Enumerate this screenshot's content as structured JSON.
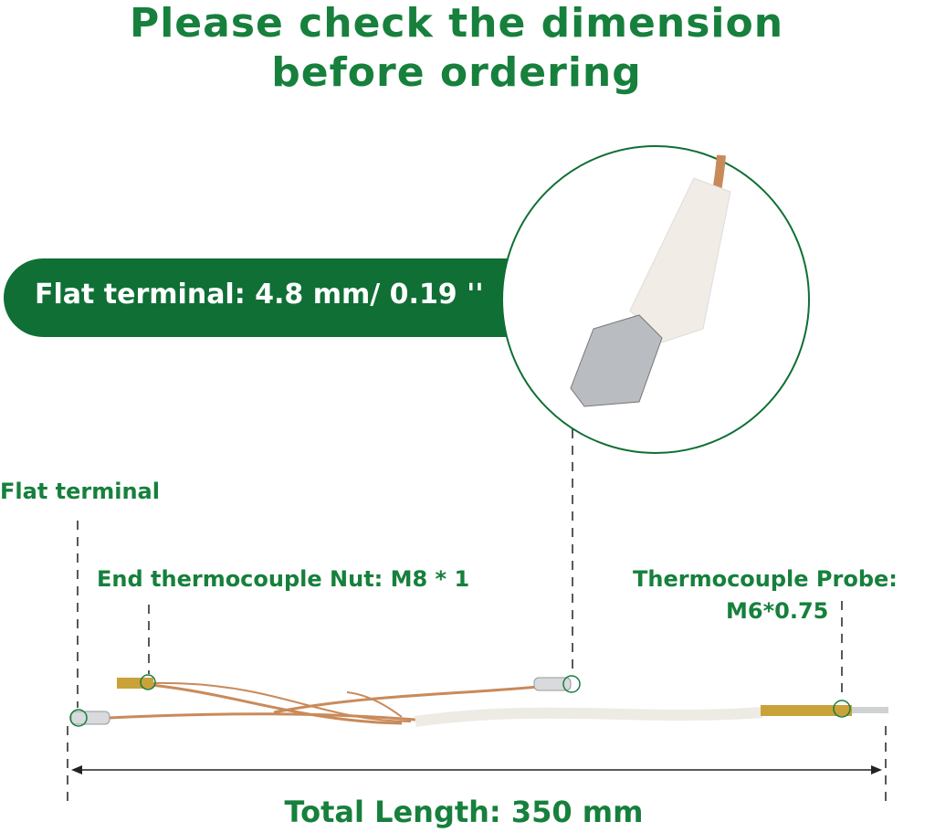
{
  "title": {
    "line1": "Please check the dimension",
    "line2": "before ordering"
  },
  "banner": {
    "text": "Flat terminal: 4.8 mm/ 0.19 ''"
  },
  "labels": {
    "flat_terminal": "Flat terminal",
    "nut": "End thermocouple Nut: M8 * 1",
    "probe_line1": "Thermocouple Probe:",
    "probe_line2": "M6*0.75",
    "total_length": "Total Length: 350 mm"
  },
  "colors": {
    "accent": "#16803c",
    "banner": "#0f6f35",
    "wire": "#c98a5a"
  }
}
